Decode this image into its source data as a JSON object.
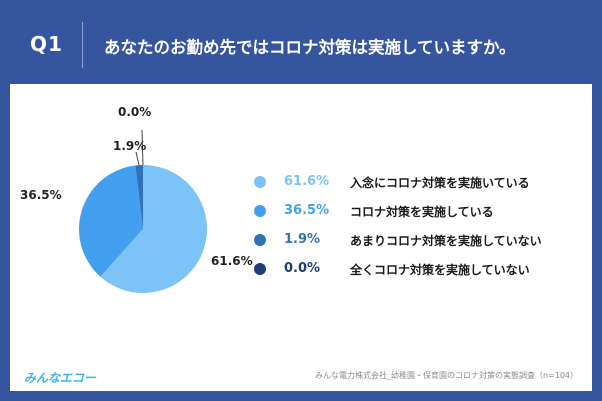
{
  "header": {
    "q_label": "Q1",
    "question": "あなたのお勤め先ではコロナ対策は実施していますか。"
  },
  "chart_data": {
    "type": "pie",
    "slices": [
      {
        "label": "入念にコロナ対策を実施いている",
        "value": 61.6,
        "display": "61.6%",
        "color": "#7cc3f7"
      },
      {
        "label": "コロナ対策を実施している",
        "value": 36.5,
        "display": "36.5%",
        "color": "#43a0f0"
      },
      {
        "label": "あまりコロナ対策を実施していない",
        "value": 1.9,
        "display": "1.9%",
        "color": "#2f72b8"
      },
      {
        "label": "全くコロナ対策を実施していない",
        "value": 0.0,
        "display": "0.0%",
        "color": "#1b3f75"
      }
    ],
    "legend_position": "right",
    "pct_colors": [
      "#7cc3f7",
      "#43a0f0",
      "#2f72b8",
      "#1b3f75"
    ]
  },
  "footer": {
    "logo": "みんなエコー",
    "source": "みんな電力株式会社_幼稚園・保育園のコロナ対策の実態調査（n=104）"
  }
}
